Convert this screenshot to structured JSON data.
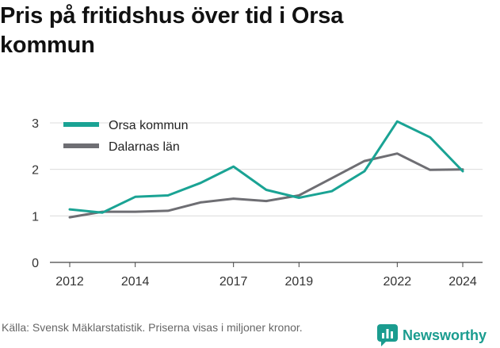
{
  "title": "Pris på fritidshus över tid i Orsa kommun",
  "source": "Källa: Svensk Mäklarstatistik. Priserna visas i miljoner kronor.",
  "brand": {
    "name": "Newsworthy",
    "icon": "newsworthy-logo-icon",
    "color": "#1a9c8f"
  },
  "chart_data": {
    "type": "line",
    "title": "Pris på fritidshus över tid i Orsa kommun",
    "xlabel": "",
    "ylabel": "",
    "xlim": [
      2012,
      2024
    ],
    "ylim": [
      0,
      3
    ],
    "yticks": [
      0,
      1,
      2,
      3
    ],
    "xticks": [
      2012,
      2014,
      2017,
      2019,
      2022,
      2024
    ],
    "grid": true,
    "legend": "top-left",
    "series": [
      {
        "name": "Orsa kommun",
        "color": "#1aa394",
        "x": [
          2012,
          2013,
          2014,
          2015,
          2016,
          2017,
          2018,
          2019,
          2020,
          2021,
          2022,
          2023,
          2024
        ],
        "values": [
          1.14,
          1.07,
          1.41,
          1.44,
          1.71,
          2.06,
          1.56,
          1.39,
          1.53,
          1.96,
          3.03,
          2.69,
          1.96
        ]
      },
      {
        "name": "Dalarnas län",
        "color": "#6e6e73",
        "x": [
          2012,
          2013,
          2014,
          2015,
          2016,
          2017,
          2018,
          2019,
          2020,
          2021,
          2022,
          2023,
          2024
        ],
        "values": [
          0.97,
          1.09,
          1.09,
          1.11,
          1.29,
          1.37,
          1.32,
          1.44,
          1.81,
          2.18,
          2.34,
          1.99,
          2.0
        ]
      }
    ]
  }
}
